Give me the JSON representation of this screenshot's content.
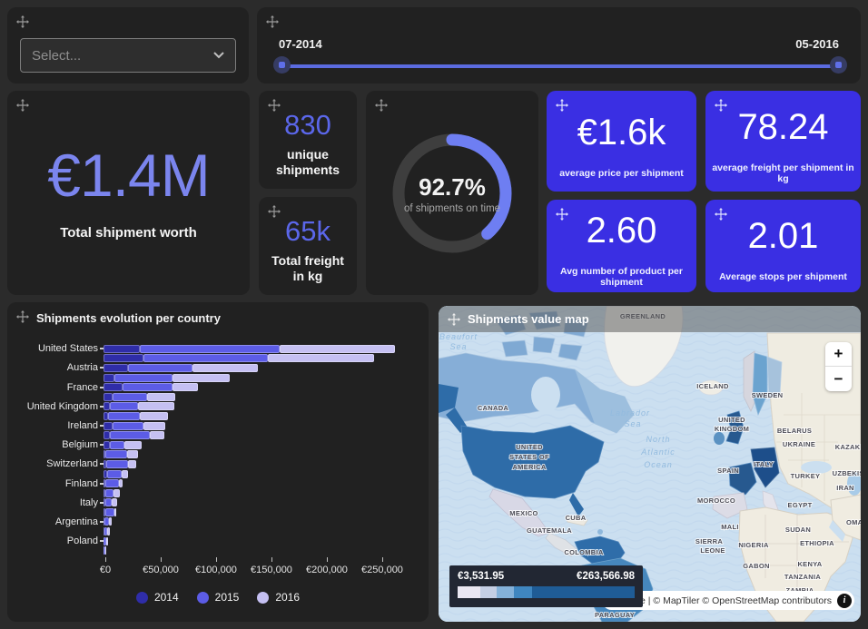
{
  "page": {
    "bg": "#2b2b2b",
    "panel_bg": "#212121",
    "accent_blue": "#3a2fe3",
    "accent_purple": "#7b85ee"
  },
  "filter": {
    "placeholder": "Select..."
  },
  "date_slider": {
    "start_label": "07-2014",
    "end_label": "05-2016",
    "track_color": "#5b6be0"
  },
  "kpis": {
    "total_worth": {
      "value": "€1.4M",
      "label": "Total shipment worth"
    },
    "unique_shipments": {
      "value": "830",
      "label": "unique\nshipments"
    },
    "total_freight": {
      "value": "65k",
      "label": "Total freight\nin kg"
    },
    "on_time": {
      "value": "92.7%",
      "label": "of shipments on time",
      "arc_degrees": 139,
      "arc_color": "#6e7ef2",
      "ring_color": "#3e3e3e"
    },
    "avg_price": {
      "value": "€1.6k",
      "label": "average price per shipment"
    },
    "avg_freight": {
      "value": "78.24",
      "label": "average freight per shipment in kg"
    },
    "avg_products": {
      "value": "2.60",
      "label": "Avg number of product per shipment"
    },
    "avg_stops": {
      "value": "2.01",
      "label": "Average stops per shipment"
    }
  },
  "chart_data": [
    {
      "type": "bar",
      "orientation": "horizontal",
      "stacked": true,
      "title": "Shipments evolution per country",
      "categories": [
        "United States",
        "",
        "Austria",
        "",
        "France",
        "",
        "United Kingdom",
        "",
        "Ireland",
        "",
        "Belgium",
        "",
        "Switzerland",
        "",
        "Finland",
        "",
        "Italy",
        "",
        "Argentina",
        "",
        "Poland",
        ""
      ],
      "series": [
        {
          "name": "2014",
          "color": "#2f2da8",
          "values": [
            33000,
            36000,
            22000,
            10000,
            17000,
            8000,
            6000,
            4000,
            8000,
            6000,
            5500,
            1500,
            2500,
            3000,
            2000,
            2000,
            1500,
            2000,
            1000,
            600,
            400,
            200
          ]
        },
        {
          "name": "2015",
          "color": "#5c5ce6",
          "values": [
            126000,
            112000,
            58000,
            52000,
            45000,
            31000,
            25000,
            29000,
            28000,
            36000,
            13000,
            20000,
            20000,
            13000,
            12000,
            7000,
            6000,
            8000,
            4000,
            3000,
            2200,
            1300
          ]
        },
        {
          "name": "2016",
          "color": "#c5c0f2",
          "values": [
            104000,
            96000,
            59000,
            52000,
            23000,
            26000,
            33000,
            25000,
            20000,
            13000,
            16000,
            10000,
            7000,
            6000,
            3000,
            6000,
            5000,
            1200,
            2200,
            1800,
            1700,
            1000
          ]
        }
      ],
      "x_ticks": [
        "€0",
        "€50,000",
        "€100,000",
        "€150,000",
        "€200,000",
        "€250,000"
      ],
      "x_tick_values": [
        0,
        50000,
        100000,
        150000,
        200000,
        250000
      ],
      "xlim": [
        0,
        280000
      ],
      "legend_position": "bottom",
      "grid": false
    },
    {
      "type": "heatmap",
      "subtype": "choropleth-world-map",
      "title": "Shipments value map",
      "legend": {
        "min_label": "€3,531.95",
        "max_label": "€263,566.98",
        "colors": [
          "#eae7f2",
          "#c4cee4",
          "#84b1d9",
          "#3f86c0",
          "#1f5c96"
        ],
        "widths": [
          13,
          9,
          10,
          10,
          58
        ]
      },
      "attribution": "MapLibre | © MapTiler © OpenStreetMap contributors",
      "zoom_in_label": "+",
      "zoom_out_label": "−",
      "labels": [
        {
          "text": "GREENLAND",
          "x": 225,
          "y": 14
        },
        {
          "text": "ICELAND",
          "x": 302,
          "y": 91
        },
        {
          "text": "SWEDEN",
          "x": 362,
          "y": 101
        },
        {
          "text": "CANADA",
          "x": 60,
          "y": 115
        },
        {
          "text": "UNITED",
          "x": 100,
          "y": 158
        },
        {
          "text": "STATES OF",
          "x": 100,
          "y": 169
        },
        {
          "text": "AMERICA",
          "x": 100,
          "y": 180
        },
        {
          "text": "UNITED",
          "x": 323,
          "y": 128
        },
        {
          "text": "KINGDOM",
          "x": 323,
          "y": 138
        },
        {
          "text": "BELARUS",
          "x": 392,
          "y": 140
        },
        {
          "text": "UKRAINE",
          "x": 397,
          "y": 155
        },
        {
          "text": "ITALY",
          "x": 358,
          "y": 177
        },
        {
          "text": "SPAIN",
          "x": 319,
          "y": 184
        },
        {
          "text": "TURKEY",
          "x": 404,
          "y": 190
        },
        {
          "text": "KAZAKHSTAN",
          "x": 464,
          "y": 158,
          "anchor": "start-clip"
        },
        {
          "text": "UZBEKISTAN",
          "x": 459,
          "y": 187,
          "anchor": "start-clip"
        },
        {
          "text": "IRAN",
          "x": 448,
          "y": 203
        },
        {
          "text": "OMAN",
          "x": 461,
          "y": 241,
          "anchor": "start-clip"
        },
        {
          "text": "MOROCCO",
          "x": 306,
          "y": 217
        },
        {
          "text": "EGYPT",
          "x": 398,
          "y": 222
        },
        {
          "text": "MEXICO",
          "x": 94,
          "y": 231
        },
        {
          "text": "CUBA",
          "x": 151,
          "y": 236
        },
        {
          "text": "GUATEMALA",
          "x": 122,
          "y": 250
        },
        {
          "text": "COLOMBIA",
          "x": 160,
          "y": 274
        },
        {
          "text": "PARAGUAY",
          "x": 194,
          "y": 343
        },
        {
          "text": "MALI",
          "x": 321,
          "y": 246
        },
        {
          "text": "SUDAN",
          "x": 396,
          "y": 249
        },
        {
          "text": "SIERRA",
          "x": 298,
          "y": 262
        },
        {
          "text": "LEONE",
          "x": 302,
          "y": 272
        },
        {
          "text": "NIGERIA",
          "x": 347,
          "y": 266
        },
        {
          "text": "ETHIOPIA",
          "x": 417,
          "y": 264
        },
        {
          "text": "GABON",
          "x": 350,
          "y": 289
        },
        {
          "text": "KENYA",
          "x": 409,
          "y": 287
        },
        {
          "text": "TANZANIA",
          "x": 401,
          "y": 301
        },
        {
          "text": "ZAMBIA",
          "x": 398,
          "y": 316
        },
        {
          "text": "Beaufort",
          "x": 22,
          "y": 37,
          "kind": "ocean"
        },
        {
          "text": "Sea",
          "x": 22,
          "y": 48,
          "kind": "ocean"
        },
        {
          "text": "Labrador",
          "x": 211,
          "y": 121,
          "kind": "ocean"
        },
        {
          "text": "Sea",
          "x": 214,
          "y": 133,
          "kind": "ocean"
        },
        {
          "text": "North",
          "x": 242,
          "y": 150,
          "kind": "ocean"
        },
        {
          "text": "Atlantic",
          "x": 242,
          "y": 164,
          "kind": "ocean"
        },
        {
          "text": "Ocean",
          "x": 242,
          "y": 178,
          "kind": "ocean"
        }
      ]
    }
  ]
}
